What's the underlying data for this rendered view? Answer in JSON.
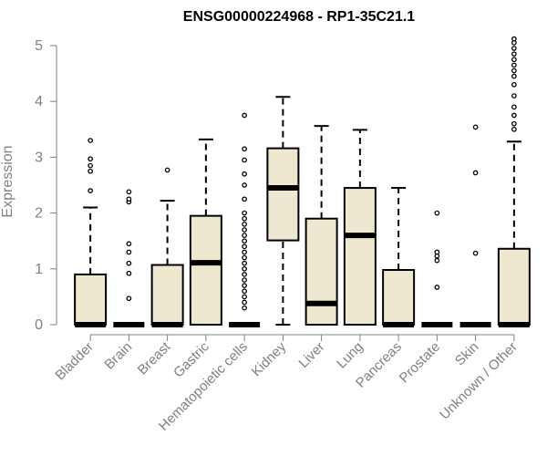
{
  "chart_data": {
    "type": "box",
    "title": "ENSG00000224968 - RP1-35C21.1",
    "ylabel": "Expression",
    "xlabel": "",
    "ylim": [
      0,
      5.2
    ],
    "yticks": [
      0,
      1,
      2,
      3,
      4,
      5
    ],
    "box_fill": "#EFE8D1",
    "categories": [
      "Bladder",
      "Brain",
      "Breast",
      "Gastric",
      "Hematopoietic cells",
      "Kidney",
      "Liver",
      "Lung",
      "Pancreas",
      "Prostate",
      "Skin",
      "Unknown / Other"
    ],
    "boxes": [
      {
        "q1": 0,
        "median": 0,
        "q3": 0.9,
        "whisker_low": 0,
        "whisker_high": 2.1,
        "outliers": [
          2.4,
          2.75,
          2.85,
          2.97,
          3.3
        ]
      },
      {
        "q1": 0,
        "median": 0,
        "q3": 0,
        "whisker_low": 0,
        "whisker_high": 0,
        "outliers": [
          0.47,
          0.92,
          1.1,
          1.3,
          1.45,
          2.2,
          2.25,
          2.38
        ]
      },
      {
        "q1": 0,
        "median": 0,
        "q3": 1.07,
        "whisker_low": 0,
        "whisker_high": 2.22,
        "outliers": [
          2.77
        ]
      },
      {
        "q1": 0,
        "median": 1.11,
        "q3": 1.95,
        "whisker_low": 0,
        "whisker_high": 3.32,
        "outliers": []
      },
      {
        "q1": 0,
        "median": 0,
        "q3": 0,
        "whisker_low": 0,
        "whisker_high": 0,
        "outliers": [
          0.3,
          0.4,
          0.5,
          0.6,
          0.7,
          0.8,
          0.9,
          1.0,
          1.1,
          1.2,
          1.3,
          1.4,
          1.5,
          1.6,
          1.7,
          1.8,
          1.9,
          2.0,
          2.25,
          2.5,
          2.7,
          2.95,
          3.15,
          3.75
        ]
      },
      {
        "q1": 1.51,
        "median": 2.45,
        "q3": 3.16,
        "whisker_low": 0,
        "whisker_high": 4.08,
        "outliers": []
      },
      {
        "q1": 0,
        "median": 0.38,
        "q3": 1.9,
        "whisker_low": 0,
        "whisker_high": 3.56,
        "outliers": []
      },
      {
        "q1": 0,
        "median": 1.6,
        "q3": 2.45,
        "whisker_low": 0,
        "whisker_high": 3.49,
        "outliers": []
      },
      {
        "q1": 0,
        "median": 0,
        "q3": 0.98,
        "whisker_low": 0,
        "whisker_high": 2.45,
        "outliers": []
      },
      {
        "q1": 0,
        "median": 0,
        "q3": 0,
        "whisker_low": 0,
        "whisker_high": 0,
        "outliers": [
          0.67,
          1.15,
          1.23,
          1.3,
          2.0
        ]
      },
      {
        "q1": 0,
        "median": 0,
        "q3": 0,
        "whisker_low": 0,
        "whisker_high": 0,
        "outliers": [
          1.28,
          2.72,
          3.54
        ]
      },
      {
        "q1": 0,
        "median": 0,
        "q3": 1.36,
        "whisker_low": 0,
        "whisker_high": 3.28,
        "outliers": [
          3.5,
          3.6,
          3.75,
          3.9,
          4.1,
          4.3,
          4.45,
          4.55,
          4.65,
          4.75,
          4.85,
          4.95,
          5.05,
          5.12
        ]
      }
    ]
  }
}
